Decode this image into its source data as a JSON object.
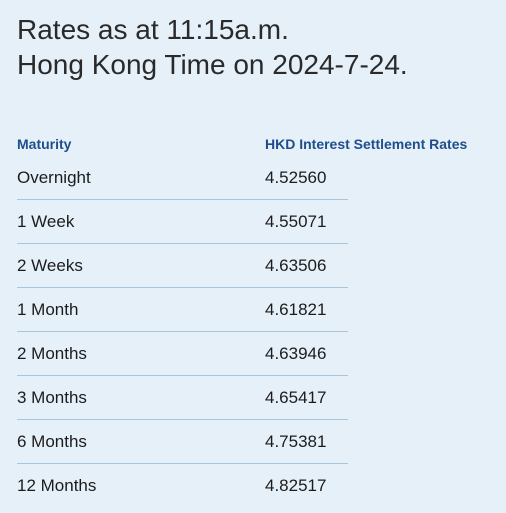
{
  "title": {
    "line1": "Rates as at 11:15a.m.",
    "line2": "Hong Kong Time on 2024-7-24."
  },
  "table": {
    "headers": {
      "maturity": "Maturity",
      "rate": "HKD Interest Settlement Rates"
    },
    "rows": [
      {
        "maturity": "Overnight",
        "rate": "4.52560"
      },
      {
        "maturity": "1 Week",
        "rate": "4.55071"
      },
      {
        "maturity": "2 Weeks",
        "rate": "4.63506"
      },
      {
        "maturity": "1 Month",
        "rate": "4.61821"
      },
      {
        "maturity": "2 Months",
        "rate": "4.63946"
      },
      {
        "maturity": "3 Months",
        "rate": "4.65417"
      },
      {
        "maturity": "6 Months",
        "rate": "4.75381"
      },
      {
        "maturity": "12 Months",
        "rate": "4.82517"
      }
    ]
  },
  "colors": {
    "background": "#e6f0f9",
    "header_text": "#1f4e8c",
    "separator": "#a9c6dd"
  }
}
